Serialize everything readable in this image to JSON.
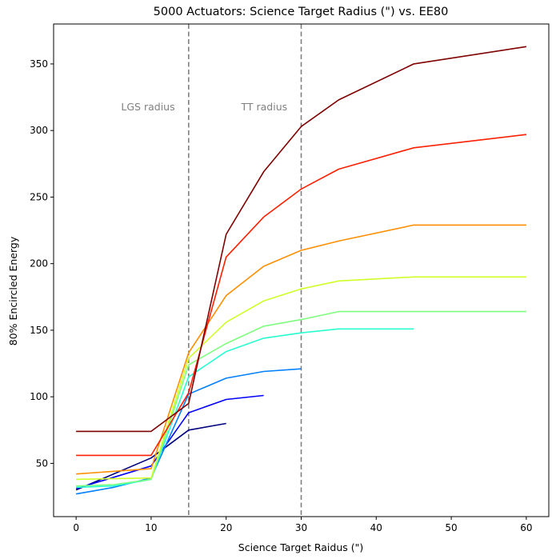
{
  "chart_data": {
    "type": "line",
    "title": "5000 Actuators: Science Target Radius (\") vs. EE80",
    "xlabel": "Science Target Raidus (\")",
    "ylabel": "80% Encircled Energy",
    "xlim": [
      -3,
      63
    ],
    "ylim": [
      10,
      380
    ],
    "xticks": [
      0,
      10,
      20,
      30,
      40,
      50,
      60
    ],
    "yticks": [
      50,
      100,
      150,
      200,
      250,
      300,
      350
    ],
    "grid": false,
    "legend": "none",
    "vlines": [
      {
        "x": 15,
        "label": "LGS radius",
        "label_x": 6,
        "label_y": 315,
        "color": "#808080"
      },
      {
        "x": 30,
        "label": "TT radius",
        "label_x": 22,
        "label_y": 315,
        "color": "#808080"
      }
    ],
    "series": [
      {
        "color": "#00007f",
        "x": [
          0,
          10,
          15,
          20
        ],
        "y": [
          30,
          54,
          75,
          80
        ]
      },
      {
        "color": "#0000ff",
        "x": [
          0,
          10,
          15,
          20,
          25
        ],
        "y": [
          31,
          48,
          88,
          98,
          101
        ]
      },
      {
        "color": "#007fff",
        "x": [
          0,
          5,
          10,
          15,
          20,
          25,
          30
        ],
        "y": [
          27,
          32,
          39,
          102,
          114,
          119,
          121
        ]
      },
      {
        "color": "#27ffd0",
        "x": [
          0,
          5,
          10,
          15,
          20,
          25,
          30,
          35,
          45
        ],
        "y": [
          32,
          33,
          38,
          115,
          134,
          144,
          148,
          151,
          151
        ]
      },
      {
        "color": "#7fff7f",
        "x": [
          0,
          5,
          10,
          15,
          20,
          25,
          30,
          35,
          45,
          60
        ],
        "y": [
          33,
          34,
          38,
          124,
          140,
          153,
          158,
          164,
          164,
          164
        ]
      },
      {
        "color": "#d0ff27",
        "x": [
          0,
          10,
          15,
          20,
          25,
          30,
          35,
          45,
          60
        ],
        "y": [
          38,
          39,
          129,
          156,
          172,
          181,
          187,
          190,
          190
        ]
      },
      {
        "color": "#ff8f00",
        "x": [
          0,
          10,
          15,
          20,
          25,
          30,
          35,
          45,
          60
        ],
        "y": [
          42,
          46,
          133,
          176,
          198,
          210,
          217,
          229,
          229
        ]
      },
      {
        "color": "#ff2000",
        "x": [
          0,
          10,
          15,
          20,
          25,
          30,
          35,
          45,
          60
        ],
        "y": [
          56,
          56,
          103,
          205,
          235,
          256,
          271,
          287,
          297
        ]
      },
      {
        "color": "#7f0000",
        "x": [
          0,
          10,
          15,
          20,
          25,
          30,
          35,
          45,
          60
        ],
        "y": [
          74,
          74,
          95,
          222,
          269,
          303,
          323,
          350,
          363
        ]
      }
    ]
  }
}
